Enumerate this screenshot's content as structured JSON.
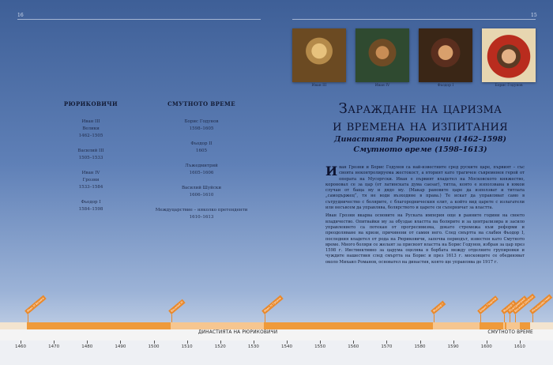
{
  "pages": {
    "left": "16",
    "right": "15"
  },
  "columns": [
    {
      "heading": "РЮРИКОВИЧИ",
      "entries": [
        {
          "name": "Иван III",
          "epithet": "Велики",
          "years": "1462–1505"
        },
        {
          "name": "Василий III",
          "years": "1505–1533"
        },
        {
          "name": "Иван IV",
          "epithet": "Грозни",
          "years": "1533–1584"
        },
        {
          "name": "Фьодор I",
          "years": "1584–1598"
        }
      ]
    },
    {
      "heading": "СМУТНОТО ВРЕМЕ",
      "entries": [
        {
          "name": "Борис Годунов",
          "years": "1598–1605"
        },
        {
          "name": "Фьодор II",
          "years": "1605"
        },
        {
          "name": "Лъжедмитрий",
          "years": "1605–1606"
        },
        {
          "name": "Василий Шуйски",
          "years": "1606–1610"
        },
        {
          "name": "Междуцарствие – няколко претенденти",
          "years": "1610–1613"
        }
      ]
    }
  ],
  "portraits": [
    "Иван III",
    "Иван IV",
    "Фьодор I",
    "Борис Годунов"
  ],
  "title_line1": "Зараждане на царизма",
  "title_line2": "и времена на изпитания",
  "subtitle1": "Династията Рюриковичи (1462–1598)",
  "subtitle2": "Смутното време (1598–1613)",
  "body": {
    "dropcap": "И",
    "paragraph1": "ван Грозни и Борис Годунов са най-известните сред руските царе, първият – със своята неконтролируема жестокост, а вторият като трагичен съвременен герой от операта на Мусоргски. Иван е първият владетел на Московското княжество, короновал се за цар (от латинската дума caesar), титла, която е използвана в някои случаи от баща му и дядо му. (Макар рановите царе да използват и титлата „самодържец“, тя не води възходяне в права.) Те искат да управляват само в сътрудничество с болярите, с благородническия елит, а който вид царете с излагатели или несъвсем да управлява, болярството и царете си съперничат за властта.",
    "paragraph2": "Иван Грозни вкарва основите на Руската империя още в ранните години на своето владичество. Опитвайки му за обуздае властта на болярите и за централизира и засило управлението са потекан от прогресивизма, докато стремежа към реформи и преодоляване на кризи, причинени от самия него. След смъртта на слабия Фьодор I, последния владетел от рода на Рюриковичи, започва периодът, известен като Смутното време. Много боляри се желаят за присвоят властта на Борис Годунов, избран за цар през 1598 г. Инстинктивно за царума оцелява в борбата между отделните групировки и чуждите нашествия след смъртта на Борис и през 1613 г. московците се обединяват около Михаил Романов, основател на династия, която ще управлява до 1917 г."
  },
  "timeline": {
    "axis_min": 1455,
    "axis_max": 1620,
    "ticks": [
      "1460",
      "1470",
      "1480",
      "1490",
      "1500",
      "1510",
      "1520",
      "1530",
      "1540",
      "1550",
      "1560",
      "1570",
      "1580",
      "1590",
      "1600",
      "1610"
    ],
    "eras": [
      {
        "label": "ДИНАСТИЯТА НА РЮРИКОВИЧИ",
        "start": 1462,
        "end": 1598
      },
      {
        "label": "СМУТНОТО ВРЕМЕ",
        "start": 1598,
        "end": 1613
      }
    ],
    "reigns": [
      {
        "label": "Иван III Велики",
        "start": 1462,
        "end": 1505
      },
      {
        "label": "Василий III",
        "start": 1505,
        "end": 1533
      },
      {
        "label": "Иван IV Грозни",
        "start": 1533,
        "end": 1584
      },
      {
        "label": "Фьодор I",
        "start": 1584,
        "end": 1598
      },
      {
        "label": "Борис Годунов",
        "start": 1598,
        "end": 1605
      },
      {
        "label": "Фьодор II",
        "start": 1605,
        "end": 1605.5
      },
      {
        "label": "Лъжедмитрий",
        "start": 1605.5,
        "end": 1606
      },
      {
        "label": "Василий Шуйски",
        "start": 1606,
        "end": 1610
      },
      {
        "label": "Междуцарствие",
        "start": 1610,
        "end": 1613
      }
    ],
    "colors": {
      "reign_a": "#ef9a3a",
      "reign_b": "#f6c690",
      "tag": "#e9892c"
    }
  }
}
